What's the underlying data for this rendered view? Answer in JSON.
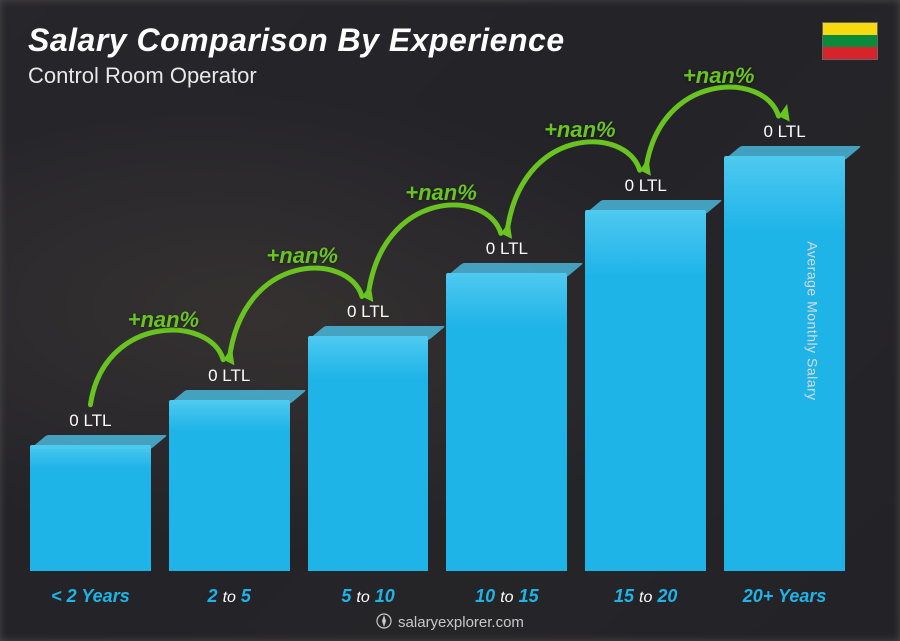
{
  "title": "Salary Comparison By Experience",
  "subtitle": "Control Room Operator",
  "y_axis_label": "Average Monthly Salary",
  "footer_text": "salaryexplorer.com",
  "flag": {
    "stripes": [
      "#f8d80e",
      "#0a8a3a",
      "#d8232a"
    ]
  },
  "chart": {
    "type": "bar",
    "bar_color": "#1fb4e8",
    "bar_top_color": "#4ec9f0",
    "arrow_color": "#69c421",
    "pct_color": "#69c421",
    "value_text_color": "#ffffff",
    "xlabel_accent_color": "#1fb4e8",
    "xlabel_mid_color": "#ffffff",
    "background_overlay": "rgba(20,20,25,0.35)",
    "bars": [
      {
        "label_pre": "< 2",
        "label_mid": "",
        "label_post": "Years",
        "value_label": "0 LTL",
        "height_pct": 28
      },
      {
        "label_pre": "2",
        "label_mid": "to",
        "label_post": "5",
        "value_label": "0 LTL",
        "height_pct": 38,
        "pct_change": "+nan%"
      },
      {
        "label_pre": "5",
        "label_mid": "to",
        "label_post": "10",
        "value_label": "0 LTL",
        "height_pct": 52,
        "pct_change": "+nan%"
      },
      {
        "label_pre": "10",
        "label_mid": "to",
        "label_post": "15",
        "value_label": "0 LTL",
        "height_pct": 66,
        "pct_change": "+nan%"
      },
      {
        "label_pre": "15",
        "label_mid": "to",
        "label_post": "20",
        "value_label": "0 LTL",
        "height_pct": 80,
        "pct_change": "+nan%"
      },
      {
        "label_pre": "20+",
        "label_mid": "",
        "label_post": "Years",
        "value_label": "0 LTL",
        "height_pct": 92,
        "pct_change": "+nan%"
      }
    ]
  },
  "typography": {
    "title_fontsize": 32,
    "subtitle_fontsize": 22,
    "value_fontsize": 17,
    "xlabel_fontsize": 18,
    "pct_fontsize": 22
  }
}
